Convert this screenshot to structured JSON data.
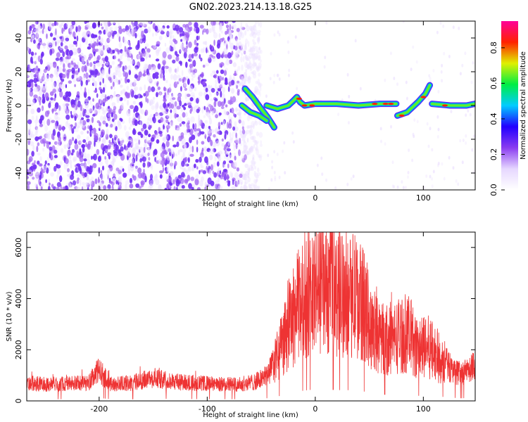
{
  "title": "GN02.2023.214.13.18.G25",
  "colors": {
    "snr_line": "#ee3333",
    "colormap": [
      "#ffffff",
      "#e6d7ff",
      "#8a3cf0",
      "#2200ff",
      "#00ccff",
      "#00ee44",
      "#e0f000",
      "#ff2200",
      "#ff0099"
    ]
  },
  "chart_data": [
    {
      "type": "heatmap",
      "title": "GN02.2023.214.13.18.G25",
      "xlabel": "Height of straight line (km)",
      "ylabel": "Frequency (Hz)",
      "xlim": [
        -267,
        148
      ],
      "ylim": [
        -50,
        50
      ],
      "xticks": [
        "-200",
        "-100",
        "0",
        "100"
      ],
      "yticks": [
        "-40",
        "-20",
        "0",
        "20",
        "40"
      ],
      "colorbar": {
        "label": "Normalized spectral amplitude",
        "range": [
          0,
          0.95
        ],
        "ticks": [
          "0.0",
          "0.2",
          "0.4",
          "0.6",
          "0.8"
        ]
      },
      "features": [
        {
          "name": "noise region",
          "x": [
            -267,
            -60
          ],
          "y": [
            -50,
            50
          ],
          "amplitude": 0.3
        },
        {
          "name": "signal band",
          "x": [
            -65,
            148
          ],
          "y_center": 0,
          "amplitude": 0.7
        },
        {
          "name": "descending branch",
          "x": [
            -65,
            -38
          ],
          "y": [
            10,
            -13
          ]
        },
        {
          "name": "ascending branch",
          "x": [
            76,
            106
          ],
          "y": [
            -6,
            12
          ]
        }
      ]
    },
    {
      "type": "line",
      "xlabel": "Height of straight line (km)",
      "ylabel": "SNR (10 * v/v)",
      "xlim": [
        -267,
        148
      ],
      "ylim": [
        0,
        6600
      ],
      "xticks": [
        "-200",
        "-100",
        "0",
        "100"
      ],
      "yticks": [
        "0",
        "2000",
        "4000",
        "6000"
      ],
      "series": [
        {
          "x": [
            -267,
            -250,
            -230,
            -210,
            -200,
            -190,
            -170,
            -150,
            -130,
            -110,
            -90,
            -70,
            -55,
            -45,
            -35,
            -25,
            -15,
            -5,
            5,
            15,
            25,
            35,
            45,
            55,
            65,
            75,
            85,
            95,
            105,
            115,
            125,
            135,
            148
          ],
          "values": [
            700,
            650,
            680,
            700,
            1200,
            650,
            700,
            900,
            750,
            700,
            650,
            650,
            750,
            1000,
            1700,
            2800,
            3800,
            4300,
            4400,
            4300,
            4200,
            4200,
            3700,
            2600,
            2400,
            2500,
            2700,
            2000,
            2100,
            1700,
            1300,
            1000,
            1400
          ]
        }
      ]
    }
  ]
}
